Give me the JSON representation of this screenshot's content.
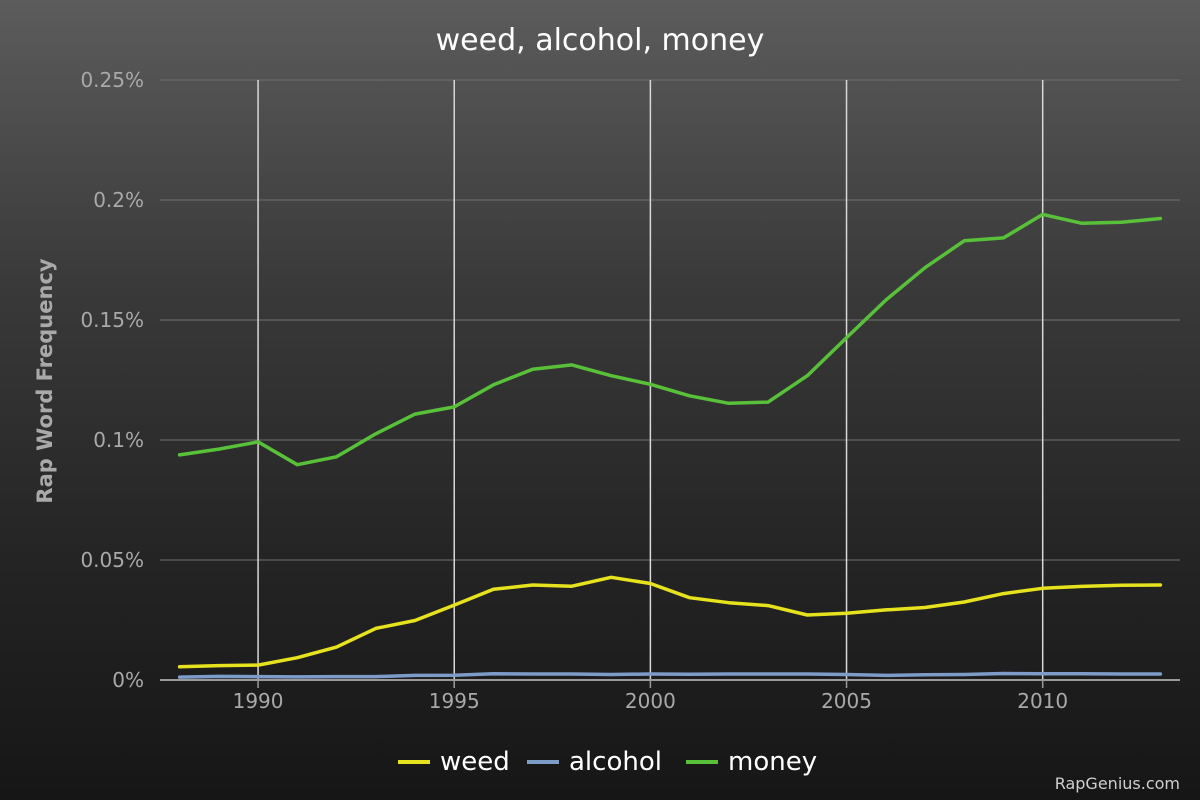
{
  "chart_data": {
    "type": "line",
    "title": "weed, alcohol, money",
    "ylabel": "Rap Word Frequency",
    "xlabel": "",
    "xlim": [
      1987.5,
      2013.5
    ],
    "ylim": [
      0,
      0.25
    ],
    "yticks": [
      0,
      0.05,
      0.1,
      0.15,
      0.2,
      0.25
    ],
    "ytick_labels": [
      "0%",
      "0.05%",
      "0.1%",
      "0.15%",
      "0.2%",
      "0.25%"
    ],
    "xticks": [
      1990,
      1995,
      2000,
      2005,
      2010
    ],
    "xtick_labels": [
      "1990",
      "1995",
      "2000",
      "2005",
      "2010"
    ],
    "grid": "horizontal lines at y ticks, vertical lines at x ticks",
    "legend_position": "bottom-center",
    "x": [
      1988,
      1989,
      1990,
      1991,
      1992,
      1993,
      1994,
      1995,
      1996,
      1997,
      1998,
      1999,
      2000,
      2001,
      2002,
      2003,
      2004,
      2005,
      2006,
      2007,
      2008,
      2009,
      2010,
      2011,
      2012,
      2013
    ],
    "series": [
      {
        "name": "weed",
        "color": "#e6e21e",
        "values": [
          0.0055,
          0.006,
          0.0062,
          0.0093,
          0.0137,
          0.0215,
          0.0248,
          0.0312,
          0.0378,
          0.0396,
          0.0391,
          0.0428,
          0.0402,
          0.0343,
          0.0322,
          0.031,
          0.0271,
          0.0278,
          0.0292,
          0.0302,
          0.0325,
          0.036,
          0.0382,
          0.039,
          0.0395,
          0.0396
        ]
      },
      {
        "name": "alcohol",
        "color": "#7e9cc8",
        "values": [
          0.0012,
          0.0015,
          0.0014,
          0.0013,
          0.0014,
          0.0014,
          0.0019,
          0.002,
          0.0026,
          0.0025,
          0.0025,
          0.0023,
          0.0025,
          0.0024,
          0.0025,
          0.0025,
          0.0025,
          0.0023,
          0.0019,
          0.0022,
          0.0023,
          0.0027,
          0.0026,
          0.0026,
          0.0025,
          0.0025
        ]
      },
      {
        "name": "money",
        "color": "#59c03a",
        "values": [
          0.0938,
          0.0962,
          0.0992,
          0.0897,
          0.093,
          0.1026,
          0.1108,
          0.1138,
          0.123,
          0.1295,
          0.1313,
          0.1268,
          0.1232,
          0.1184,
          0.1153,
          0.1158,
          0.1268,
          0.1426,
          0.1583,
          0.1718,
          0.183,
          0.1842,
          0.194,
          0.1903,
          0.1907,
          0.1923
        ]
      }
    ]
  },
  "legend": {
    "items": [
      "weed",
      "alcohol",
      "money"
    ]
  },
  "footer": {
    "source": "RapGenius.com"
  }
}
